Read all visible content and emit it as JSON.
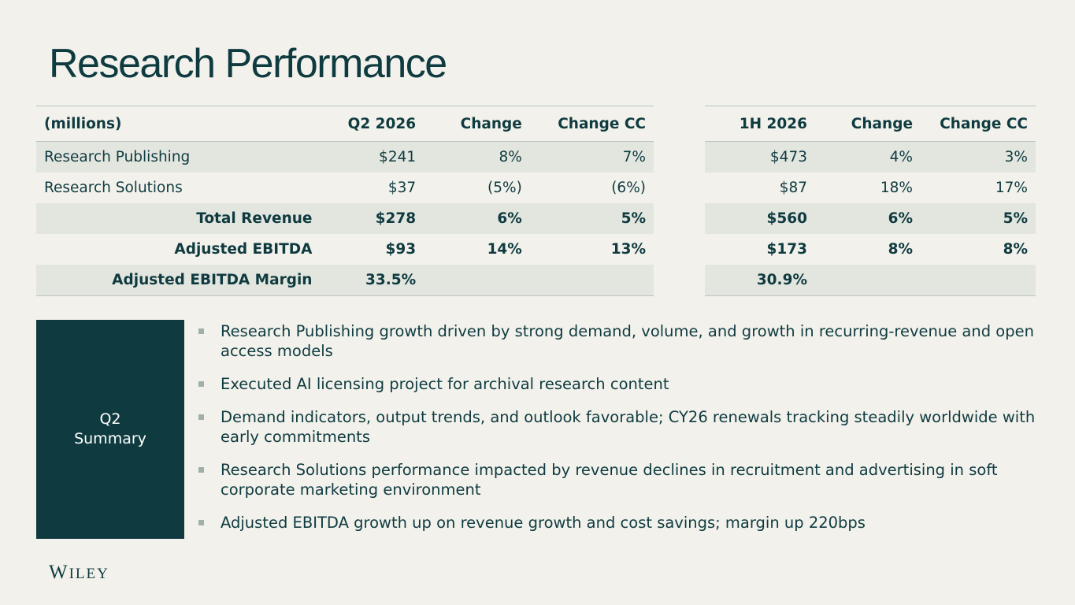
{
  "title": "Research Performance",
  "q2_table": {
    "headers": [
      "(millions)",
      "Q2 2026",
      "Change",
      "Change CC"
    ],
    "rows": [
      [
        "Research Publishing",
        "$241",
        "8%",
        "7%"
      ],
      [
        "Research Solutions",
        "$37",
        "(5%)",
        "(6%)"
      ],
      [
        "Total Revenue",
        "$278",
        "6%",
        "5%"
      ],
      [
        "Adjusted EBITDA",
        "$93",
        "14%",
        "13%"
      ],
      [
        "Adjusted EBITDA Margin",
        "33.5%",
        "",
        ""
      ]
    ]
  },
  "h1_table": {
    "headers": [
      "1H 2026",
      "Change",
      "Change CC"
    ],
    "rows": [
      [
        "$473",
        "4%",
        "3%"
      ],
      [
        "$87",
        "18%",
        "17%"
      ],
      [
        "$560",
        "6%",
        "5%"
      ],
      [
        "$173",
        "8%",
        "8%"
      ],
      [
        "30.9%",
        "",
        ""
      ]
    ]
  },
  "summary": {
    "label_line1": "Q2",
    "label_line2": "Summary",
    "bullets": [
      "Research Publishing growth driven by strong demand, volume, and growth in recurring-revenue and open access models",
      "Executed AI licensing project for archival research content",
      "Demand indicators, output trends, and outlook favorable; CY26 renewals tracking steadily worldwide with early commitments",
      "Research Solutions performance impacted by revenue declines in recruitment and advertising in soft corporate marketing environment",
      "Adjusted EBITDA growth up on revenue growth and cost savings; margin up 220bps"
    ]
  },
  "logo": {
    "first": "W",
    "rest": "ILEY"
  },
  "colors": {
    "background": "#f2f1eb",
    "brand_dark": "#0f3b40",
    "row_shade": "#e3e6df",
    "bullet": "#9fb0a9"
  }
}
